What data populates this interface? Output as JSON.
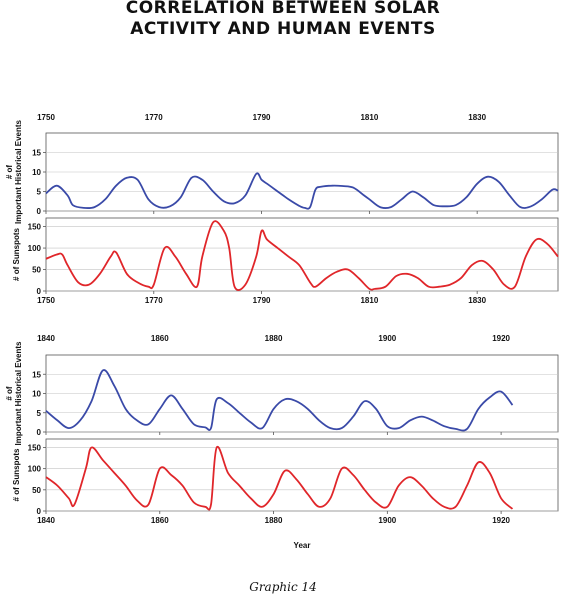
{
  "page": {
    "title_line1": "CORRELATION BETWEEN SOLAR",
    "title_line2": "ACTIVITY AND HUMAN EVENTS",
    "caption": "Graphic 14"
  },
  "chart_data": [
    {
      "type": "line",
      "panel": "1750-1845",
      "top_axis_ticks": [
        "1750",
        "1770",
        "1790",
        "1810",
        "1830"
      ],
      "bottom_axis_ticks": [
        "1750",
        "1770",
        "1790",
        "1810",
        "1830"
      ],
      "xlim": [
        1750,
        1845
      ],
      "series": [
        {
          "ylabel": "# of Important Historical Events",
          "color": "#3a4aa8",
          "ylim": [
            0,
            20
          ],
          "yticks": [
            "0",
            "5",
            "10",
            "15"
          ],
          "x": [
            1750,
            1752,
            1754,
            1755,
            1757,
            1759,
            1761,
            1763,
            1765,
            1767,
            1769,
            1771,
            1773,
            1775,
            1777,
            1779,
            1781,
            1783,
            1785,
            1787,
            1789,
            1790,
            1791,
            1793,
            1794,
            1795,
            1797,
            1798,
            1799,
            1800,
            1801,
            1803,
            1805,
            1807,
            1809,
            1810,
            1812,
            1814,
            1816,
            1818,
            1820,
            1822,
            1824,
            1826,
            1828,
            1830,
            1832,
            1834,
            1836,
            1838,
            1840,
            1842,
            1844,
            1845
          ],
          "y": [
            4.5,
            6.5,
            4,
            1.5,
            0.8,
            1,
            3,
            6.5,
            8.5,
            8,
            3,
            1,
            1.2,
            3.5,
            8.5,
            8,
            5,
            2.5,
            2,
            4,
            9.5,
            8,
            7,
            5,
            4,
            3,
            1.3,
            0.8,
            1,
            5.5,
            6.2,
            6.5,
            6.4,
            6,
            4,
            3,
            1,
            1,
            3,
            5,
            3.5,
            1.5,
            1.2,
            1.5,
            3.5,
            7,
            8.8,
            7.5,
            4,
            1,
            1.2,
            3,
            5.5,
            5.2
          ]
        },
        {
          "ylabel": "# of Sunspots",
          "color": "#e0262a",
          "ylim": [
            0,
            170
          ],
          "yticks": [
            "0",
            "50",
            "100",
            "150"
          ],
          "x": [
            1750,
            1752,
            1753,
            1754,
            1756,
            1758,
            1760,
            1762,
            1763,
            1765,
            1767,
            1769,
            1770,
            1772,
            1774,
            1776,
            1778,
            1779,
            1781,
            1783,
            1784,
            1785,
            1787,
            1789,
            1790,
            1791,
            1793,
            1795,
            1797,
            1799,
            1800,
            1802,
            1804,
            1806,
            1808,
            1810,
            1811,
            1813,
            1815,
            1817,
            1819,
            1821,
            1823,
            1825,
            1827,
            1829,
            1831,
            1833,
            1835,
            1837,
            1839,
            1841,
            1843,
            1845
          ],
          "y": [
            75,
            85,
            85,
            60,
            20,
            15,
            40,
            80,
            90,
            40,
            20,
            10,
            15,
            100,
            80,
            40,
            10,
            80,
            160,
            140,
            100,
            10,
            15,
            80,
            140,
            120,
            100,
            80,
            60,
            20,
            10,
            30,
            45,
            50,
            30,
            5,
            5,
            10,
            35,
            40,
            30,
            10,
            10,
            15,
            30,
            60,
            70,
            50,
            15,
            10,
            80,
            120,
            110,
            80
          ]
        }
      ]
    },
    {
      "type": "line",
      "panel": "1840-1930",
      "top_axis_ticks": [
        "1840",
        "1860",
        "1880",
        "1900",
        "1920"
      ],
      "bottom_axis_ticks": [
        "1840",
        "1860",
        "1880",
        "1900",
        "1920"
      ],
      "xlabel": "Year",
      "xlim": [
        1840,
        1930
      ],
      "series": [
        {
          "ylabel": "# of Important Historical Events",
          "color": "#3a4aa8",
          "ylim": [
            0,
            20
          ],
          "yticks": [
            "0",
            "5",
            "10",
            "15"
          ],
          "x": [
            1840,
            1842,
            1844,
            1846,
            1848,
            1850,
            1852,
            1854,
            1856,
            1858,
            1860,
            1862,
            1864,
            1866,
            1868,
            1869,
            1870,
            1872,
            1874,
            1876,
            1878,
            1880,
            1882,
            1884,
            1886,
            1888,
            1890,
            1892,
            1894,
            1896,
            1898,
            1900,
            1902,
            1904,
            1906,
            1908,
            1910,
            1912,
            1914,
            1916,
            1918,
            1920,
            1922
          ],
          "y": [
            5.5,
            3,
            1,
            3,
            8,
            16,
            12,
            6,
            3,
            2,
            6,
            9.5,
            6,
            2,
            1.2,
            1,
            8.5,
            7.5,
            5,
            2.5,
            1,
            6,
            8.5,
            8,
            6,
            3,
            1,
            1,
            4,
            8,
            6,
            1.5,
            1,
            3,
            4,
            3,
            1.5,
            0.8,
            0.8,
            6,
            9,
            10.5,
            7
          ]
        },
        {
          "ylabel": "# of Sunspots",
          "color": "#e0262a",
          "ylim": [
            0,
            170
          ],
          "yticks": [
            "0",
            "50",
            "100",
            "150"
          ],
          "x": [
            1840,
            1842,
            1844,
            1845,
            1847,
            1848,
            1850,
            1852,
            1854,
            1856,
            1858,
            1860,
            1862,
            1864,
            1866,
            1868,
            1869,
            1870,
            1872,
            1874,
            1876,
            1878,
            1880,
            1882,
            1884,
            1886,
            1888,
            1890,
            1892,
            1894,
            1896,
            1898,
            1900,
            1902,
            1904,
            1906,
            1908,
            1910,
            1912,
            1914,
            1916,
            1918,
            1920,
            1922
          ],
          "y": [
            80,
            60,
            30,
            15,
            100,
            150,
            120,
            90,
            60,
            25,
            15,
            100,
            85,
            60,
            20,
            10,
            15,
            150,
            90,
            60,
            30,
            10,
            40,
            95,
            75,
            40,
            10,
            30,
            100,
            85,
            50,
            20,
            10,
            60,
            80,
            60,
            30,
            10,
            10,
            60,
            115,
            90,
            30,
            5
          ]
        }
      ]
    }
  ]
}
